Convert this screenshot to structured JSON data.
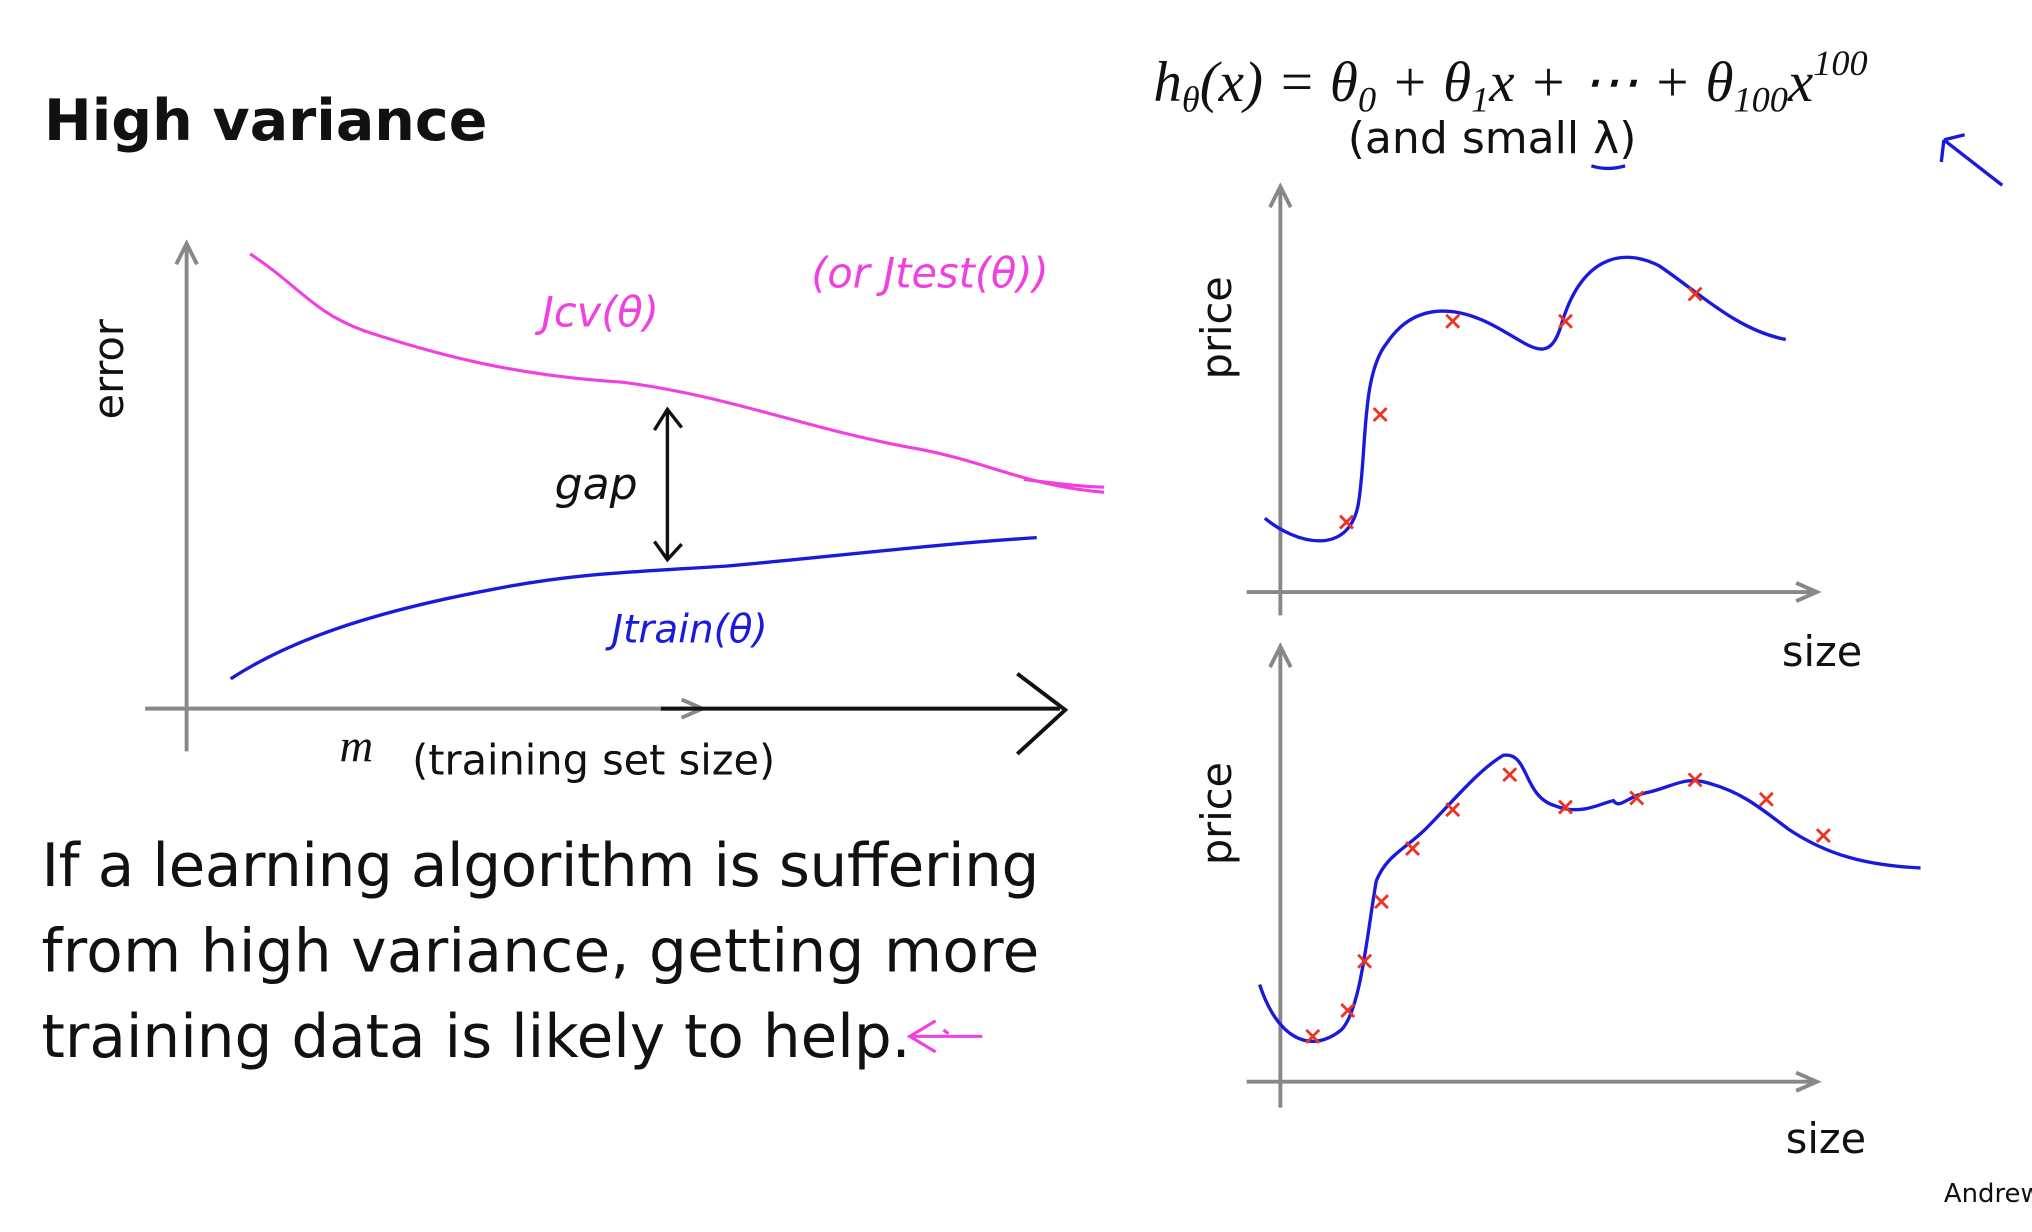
{
  "title": "High variance",
  "formula": [
    "h",
    "θ",
    "(x) = θ",
    "0",
    " + θ",
    "1",
    "x + ⋯ + θ",
    "100",
    "x",
    "100"
  ],
  "formula_note": "(and small λ)",
  "left_plot": {
    "y_label": "error",
    "x_label_symbol": "m",
    "x_label": "(training set size)",
    "cv_label": "Jcv(θ)",
    "test_label": "(or Jtest(θ))",
    "gap_label": "gap",
    "train_label": "Jtrain(θ)"
  },
  "right_plots": [
    {
      "y_label": "price",
      "x_label": "size"
    },
    {
      "y_label": "price",
      "x_label": "size"
    }
  ],
  "body_lines": [
    "If a learning algorithm is suffering",
    "from high variance, getting more",
    "training data is likely to help."
  ],
  "footer": "Andrew"
}
